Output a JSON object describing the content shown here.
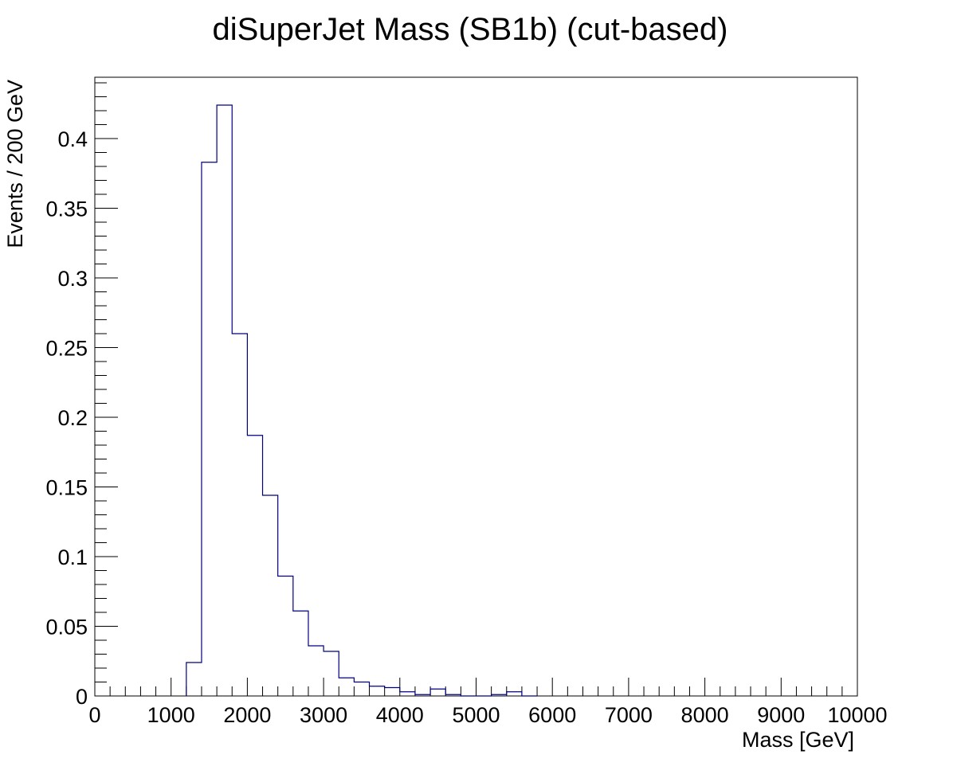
{
  "chart_data": {
    "type": "bar",
    "title": "diSuperJet Mass (SB1b) (cut-based)",
    "xlabel": "Mass [GeV]",
    "ylabel": "Events / 200 GeV",
    "xlim": [
      0,
      10000
    ],
    "ylim": [
      0,
      0.444
    ],
    "bin_width": 200,
    "x_ticks": [
      "0",
      "1000",
      "2000",
      "3000",
      "4000",
      "5000",
      "6000",
      "7000",
      "8000",
      "9000",
      "10000"
    ],
    "y_ticks": [
      "0",
      "0.05",
      "0.1",
      "0.15",
      "0.2",
      "0.25",
      "0.3",
      "0.35",
      "0.4"
    ],
    "grid": false,
    "series": [
      {
        "color": "#000080",
        "bin_low_edges": [
          1200,
          1400,
          1600,
          1800,
          2000,
          2200,
          2400,
          2600,
          2800,
          3000,
          3200,
          3400,
          3600,
          3800,
          4000,
          4200,
          4400,
          4600,
          4800,
          5000,
          5200,
          5400,
          5600
        ],
        "values": [
          0.024,
          0.383,
          0.424,
          0.26,
          0.187,
          0.144,
          0.086,
          0.061,
          0.036,
          0.032,
          0.013,
          0.01,
          0.007,
          0.006,
          0.003,
          0.001,
          0.005,
          0.001,
          0.0,
          0.0,
          0.001,
          0.003,
          0.0
        ]
      }
    ]
  }
}
